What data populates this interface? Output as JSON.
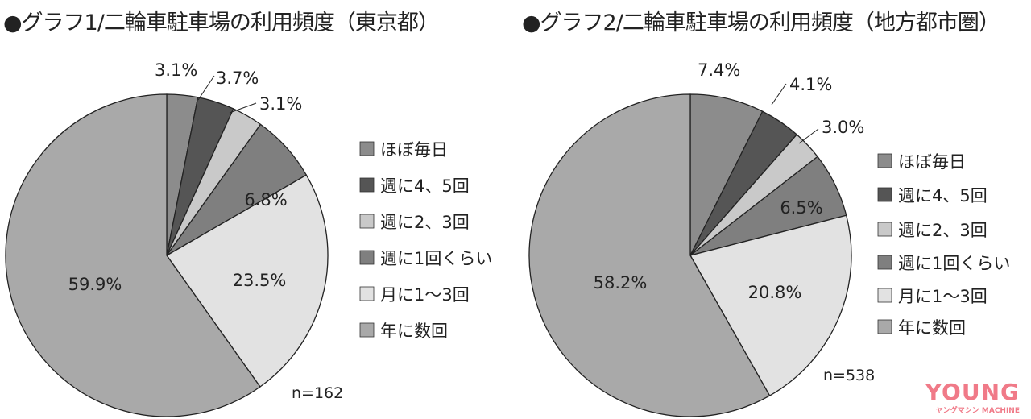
{
  "chart_data": [
    {
      "type": "pie",
      "title": "●グラフ1/二輪車駐車場の利用頻度（東京都）",
      "categories": [
        "ほぼ毎日",
        "週に4、5回",
        "週に2、3回",
        "週に1回くらい",
        "月に1〜3回",
        "年に数回"
      ],
      "values": [
        3.1,
        3.7,
        3.1,
        6.8,
        23.5,
        59.9
      ],
      "labels": [
        "3.1%",
        "3.7%",
        "3.1%",
        "6.8%",
        "23.5%",
        "59.9%"
      ],
      "colors": [
        "#8c8c8c",
        "#555555",
        "#c9c9c9",
        "#7f7f7f",
        "#e2e2e2",
        "#a9a9a9"
      ],
      "n_label": "n=162",
      "legend_position": "right"
    },
    {
      "type": "pie",
      "title": "●グラフ2/二輪車駐車場の利用頻度（地方都市圏）",
      "categories": [
        "ほぼ毎日",
        "週に4、5回",
        "週に2、3回",
        "週に1回くらい",
        "月に1〜3回",
        "年に数回"
      ],
      "values": [
        7.4,
        4.1,
        3.0,
        6.5,
        20.8,
        58.2
      ],
      "labels": [
        "7.4%",
        "4.1%",
        "3.0%",
        "6.5%",
        "20.8%",
        "58.2%"
      ],
      "colors": [
        "#8c8c8c",
        "#555555",
        "#c9c9c9",
        "#7f7f7f",
        "#e2e2e2",
        "#a9a9a9"
      ],
      "n_label": "n=538",
      "legend_position": "right"
    }
  ],
  "watermark": {
    "main": "YOUNG",
    "sub": "ヤングマシン MACHINE",
    "color": "#f07a88"
  }
}
